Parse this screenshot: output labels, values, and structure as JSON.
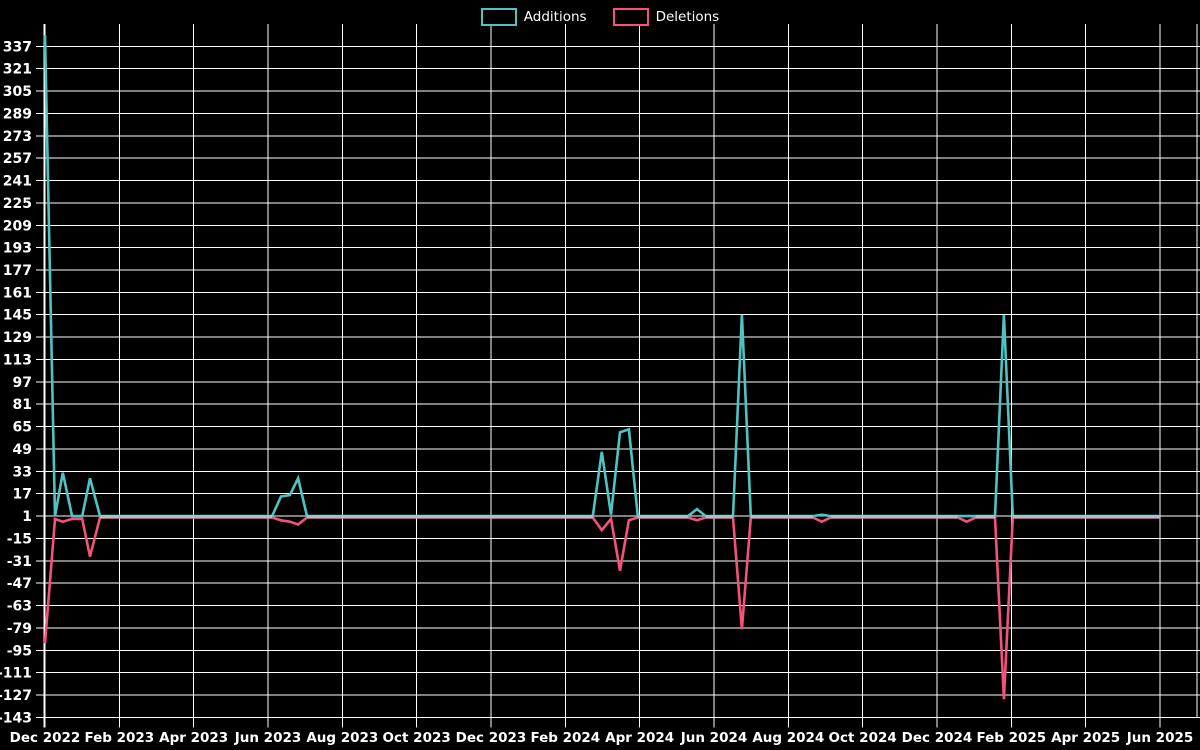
{
  "chart": {
    "background": "#000000",
    "grid_color": "#ffffff",
    "text_color": "#ffffff",
    "baseline_color": "#aebfc9",
    "legend": {
      "position": "top-center",
      "items": [
        {
          "label": "Additions",
          "color": "#4fc3c3"
        },
        {
          "label": "Deletions",
          "color": "#f4527a"
        }
      ]
    }
  },
  "chart_data": {
    "type": "line",
    "title": "",
    "xlabel": "",
    "ylabel": "",
    "x_axis": {
      "unit": "months since Dec 2022 (weekly data points)",
      "range": [
        0,
        31
      ],
      "tick_labels": [
        "Dec 2022",
        "Feb 2023",
        "Apr 2023",
        "Jun 2023",
        "Aug 2023",
        "Oct 2023",
        "Dec 2023",
        "Feb 2024",
        "Apr 2024",
        "Jun 2024",
        "Aug 2024",
        "Oct 2024",
        "Dec 2024",
        "Feb 2025",
        "Apr 2025",
        "Jun 2025"
      ]
    },
    "y_axis": {
      "max": 337,
      "min": -143,
      "step": 16,
      "ticks": [
        337,
        321,
        305,
        289,
        273,
        257,
        241,
        225,
        209,
        193,
        177,
        161,
        145,
        129,
        113,
        97,
        81,
        65,
        49,
        33,
        17,
        1,
        -15,
        -31,
        -47,
        -63,
        -79,
        -95,
        -111,
        -127,
        -143
      ]
    },
    "grid": true,
    "series": [
      {
        "name": "Additions",
        "color": "#4fc3c3",
        "points": [
          [
            0,
            345
          ],
          [
            0.27,
            1
          ],
          [
            0.48,
            32
          ],
          [
            0.73,
            1
          ],
          [
            1.0,
            1
          ],
          [
            1.21,
            28
          ],
          [
            1.48,
            1
          ],
          [
            6.11,
            1
          ],
          [
            6.35,
            15
          ],
          [
            6.59,
            16
          ],
          [
            6.81,
            28
          ],
          [
            7.05,
            1
          ],
          [
            14.74,
            1
          ],
          [
            14.98,
            47
          ],
          [
            15.23,
            2
          ],
          [
            15.47,
            61
          ],
          [
            15.71,
            63
          ],
          [
            15.95,
            1
          ],
          [
            17.3,
            1
          ],
          [
            17.54,
            6
          ],
          [
            17.78,
            1
          ],
          [
            18.51,
            1
          ],
          [
            18.75,
            145
          ],
          [
            18.99,
            1
          ],
          [
            20.66,
            1
          ],
          [
            20.9,
            2
          ],
          [
            21.14,
            1
          ],
          [
            24.56,
            1
          ],
          [
            24.8,
            1
          ],
          [
            25.04,
            1
          ],
          [
            25.56,
            1
          ],
          [
            25.8,
            145
          ],
          [
            26.04,
            1
          ],
          [
            30.0,
            1
          ]
        ]
      },
      {
        "name": "Deletions",
        "color": "#f4527a",
        "points": [
          [
            0,
            -90
          ],
          [
            0.27,
            -1
          ],
          [
            0.48,
            -3
          ],
          [
            0.73,
            -1
          ],
          [
            1.0,
            -1
          ],
          [
            1.21,
            -28
          ],
          [
            1.48,
            0
          ],
          [
            6.11,
            0
          ],
          [
            6.35,
            -2
          ],
          [
            6.59,
            -3
          ],
          [
            6.81,
            -5
          ],
          [
            7.05,
            0
          ],
          [
            14.74,
            0
          ],
          [
            14.98,
            -9
          ],
          [
            15.23,
            -1
          ],
          [
            15.47,
            -38
          ],
          [
            15.71,
            -2
          ],
          [
            15.95,
            0
          ],
          [
            17.3,
            0
          ],
          [
            17.54,
            -2
          ],
          [
            17.78,
            0
          ],
          [
            18.51,
            0
          ],
          [
            18.75,
            -80
          ],
          [
            18.99,
            0
          ],
          [
            20.66,
            0
          ],
          [
            20.9,
            -3
          ],
          [
            21.14,
            0
          ],
          [
            24.56,
            0
          ],
          [
            24.8,
            -3
          ],
          [
            25.04,
            0
          ],
          [
            25.56,
            0
          ],
          [
            25.8,
            -130
          ],
          [
            26.04,
            0
          ],
          [
            30.0,
            0
          ]
        ]
      }
    ],
    "baseline_value": 0.5,
    "baseline_runs": [
      [
        1.48,
        6.11
      ],
      [
        7.05,
        14.74
      ],
      [
        15.95,
        17.3
      ],
      [
        17.78,
        18.51
      ],
      [
        18.99,
        20.66
      ],
      [
        21.14,
        24.56
      ],
      [
        25.04,
        25.56
      ],
      [
        26.04,
        30.0
      ]
    ]
  }
}
